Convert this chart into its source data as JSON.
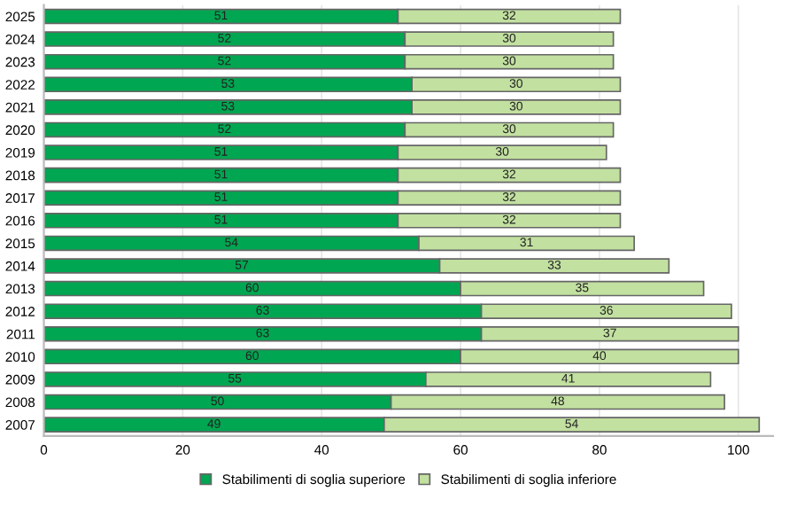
{
  "chart_data": {
    "type": "bar",
    "orientation": "horizontal",
    "stacked": true,
    "data_labels": true,
    "grid": "x",
    "legend": "bottom",
    "categories": [
      "2025",
      "2024",
      "2023",
      "2022",
      "2021",
      "2020",
      "2019",
      "2018",
      "2017",
      "2016",
      "2015",
      "2014",
      "2013",
      "2012",
      "2011",
      "2010",
      "2009",
      "2008",
      "2007"
    ],
    "series": [
      {
        "name": "Stabilimenti di soglia superiore",
        "color": "#00a651",
        "values": [
          51,
          52,
          52,
          53,
          53,
          52,
          51,
          51,
          51,
          51,
          54,
          57,
          60,
          63,
          63,
          60,
          55,
          50,
          49
        ]
      },
      {
        "name": "Stabilimenti di soglia inferiore",
        "color": "#c2e0a0",
        "values": [
          32,
          30,
          30,
          30,
          30,
          30,
          30,
          32,
          32,
          32,
          31,
          33,
          35,
          36,
          37,
          40,
          41,
          48,
          54
        ]
      }
    ],
    "xlim": [
      0,
      105
    ],
    "xticks": [
      0,
      20,
      40,
      60,
      80,
      100
    ]
  }
}
